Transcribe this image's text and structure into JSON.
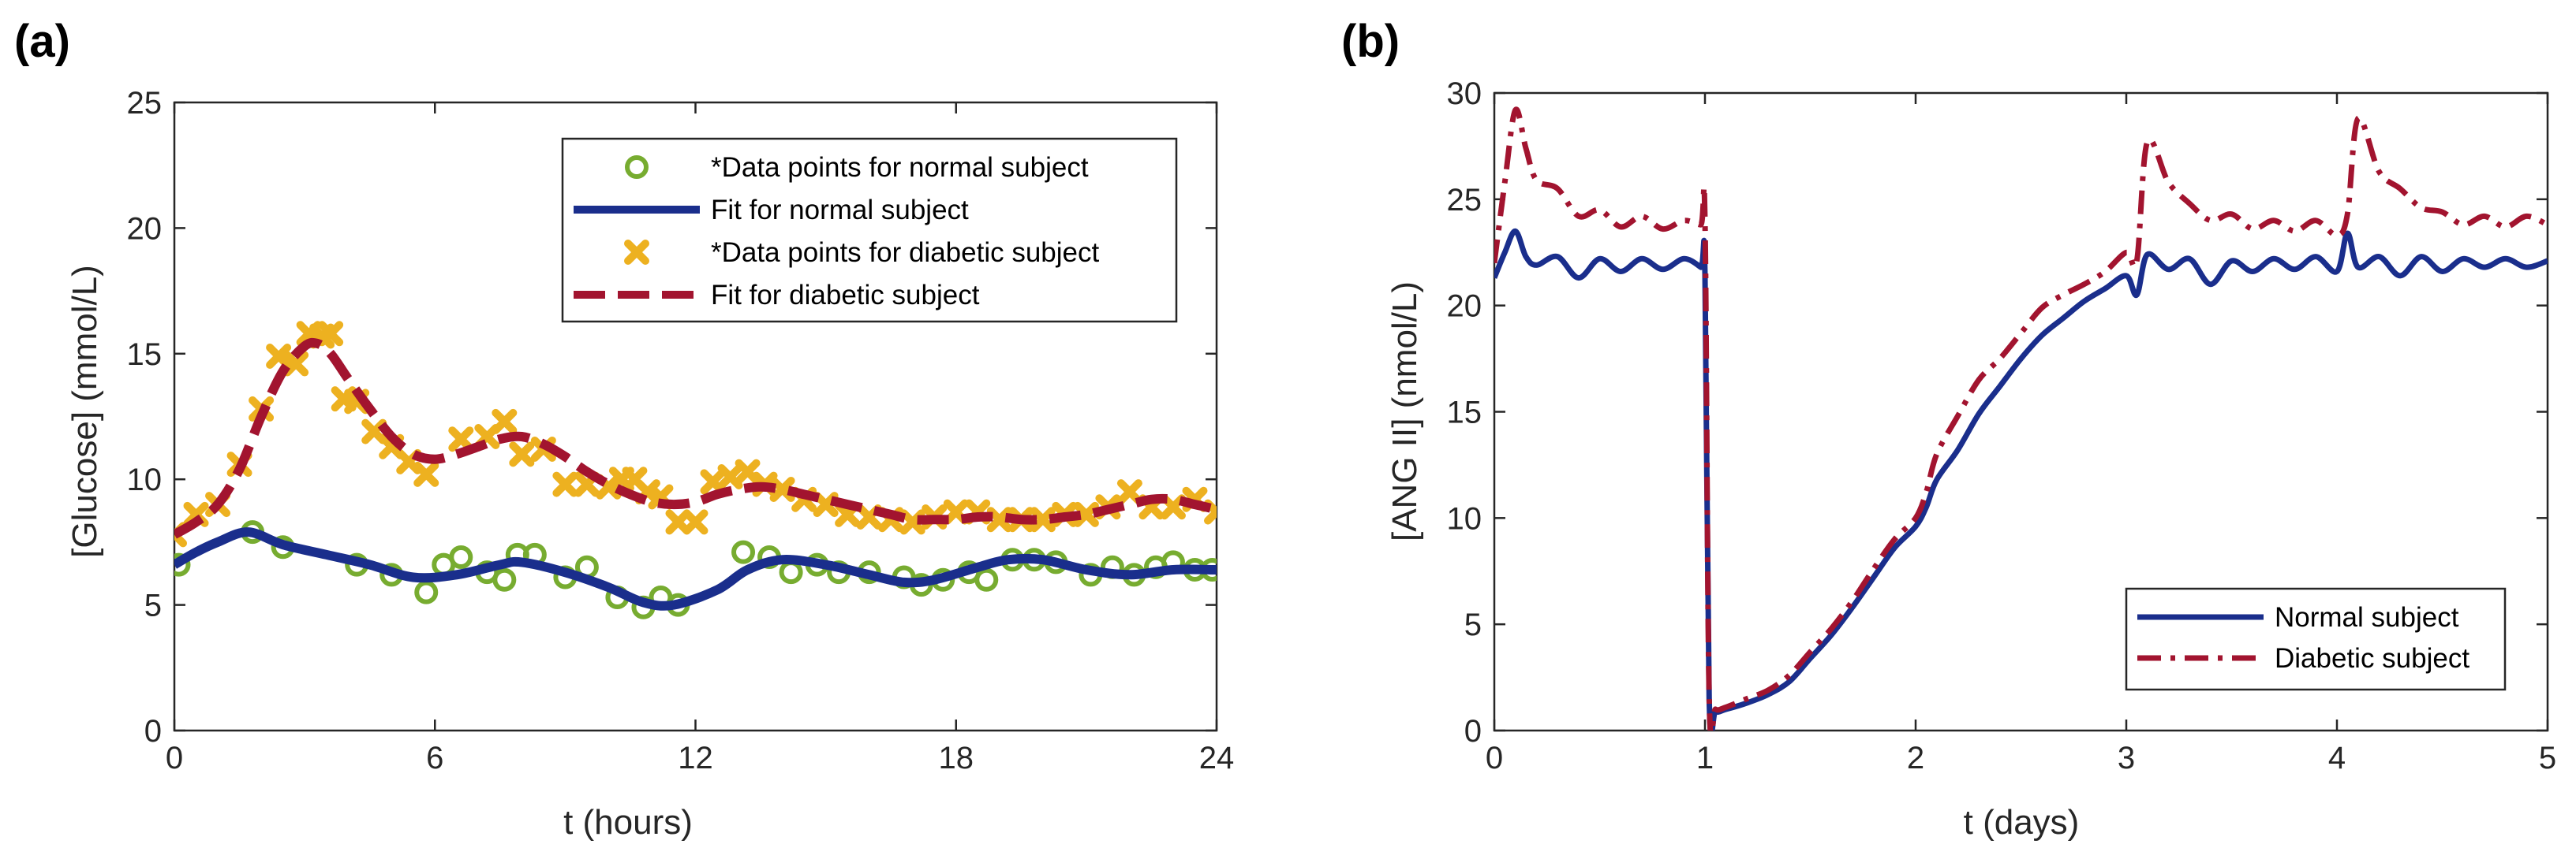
{
  "chart_data": [
    {
      "panel": "(a)",
      "type": "line",
      "xlabel": "t (hours)",
      "ylabel": "[Glucose] (mmol/L)",
      "xlim": [
        0,
        24
      ],
      "ylim": [
        0,
        25
      ],
      "xticks": [
        "0",
        "6",
        "12",
        "18",
        "24"
      ],
      "yticks": [
        "0",
        "5",
        "10",
        "15",
        "20",
        "25"
      ],
      "legend_position": "top-right",
      "series": [
        {
          "name": "*Data points for normal subject",
          "style": "circle-markers",
          "color": "#77AC30",
          "x": [
            0.1,
            1.8,
            2.5,
            4.2,
            5.0,
            5.8,
            6.2,
            6.6,
            7.2,
            7.6,
            7.9,
            8.3,
            9.0,
            9.5,
            10.2,
            10.8,
            11.2,
            11.6,
            13.1,
            13.7,
            14.2,
            14.8,
            15.3,
            16.0,
            16.8,
            17.2,
            17.7,
            18.3,
            18.7,
            19.3,
            19.8,
            20.3,
            21.1,
            21.6,
            22.1,
            22.6,
            23.0,
            23.5,
            23.9
          ],
          "y": [
            6.6,
            7.9,
            7.3,
            6.6,
            6.2,
            5.5,
            6.6,
            6.9,
            6.3,
            6.0,
            7.0,
            7.0,
            6.1,
            6.5,
            5.3,
            4.9,
            5.3,
            5.0,
            7.1,
            6.9,
            6.3,
            6.6,
            6.3,
            6.3,
            6.1,
            5.8,
            6.0,
            6.3,
            6.0,
            6.8,
            6.8,
            6.7,
            6.2,
            6.5,
            6.2,
            6.5,
            6.7,
            6.4,
            6.4
          ]
        },
        {
          "name": "Fit for normal subject",
          "style": "solid",
          "color": "#1A2E8C",
          "x": [
            0,
            0.5,
            1,
            1.7,
            2.5,
            3.5,
            4.5,
            5.5,
            6.5,
            7.5,
            8,
            9,
            10,
            10.8,
            11.5,
            12.5,
            13.2,
            14,
            15,
            16,
            16.8,
            17.5,
            18.5,
            19.2,
            20,
            21,
            22,
            23,
            24
          ],
          "y": [
            6.6,
            7.1,
            7.5,
            7.9,
            7.4,
            7.0,
            6.6,
            6.1,
            6.2,
            6.6,
            6.7,
            6.3,
            5.7,
            5.1,
            5.0,
            5.6,
            6.4,
            6.8,
            6.6,
            6.2,
            5.9,
            6.0,
            6.5,
            6.8,
            6.8,
            6.4,
            6.2,
            6.4,
            6.4
          ]
        },
        {
          "name": "*Data points for diabetic subject",
          "style": "x-markers",
          "color": "#EDB120",
          "x": [
            0,
            0.5,
            1.0,
            1.5,
            2.0,
            2.4,
            2.8,
            3.1,
            3.4,
            3.6,
            3.9,
            4.2,
            4.6,
            5.0,
            5.4,
            5.8,
            6.6,
            7.2,
            7.6,
            8.0,
            8.5,
            9.0,
            9.5,
            10.0,
            10.3,
            10.6,
            10.9,
            11.2,
            11.6,
            12.0,
            12.4,
            12.8,
            13.2,
            13.6,
            14.0,
            14.5,
            15.0,
            15.5,
            16.0,
            16.5,
            17.0,
            17.5,
            18.0,
            18.5,
            19.0,
            19.5,
            20.0,
            20.5,
            21.0,
            21.5,
            22.0,
            22.5,
            23.0,
            23.5,
            24.0
          ],
          "y": [
            7.8,
            8.6,
            9.0,
            10.6,
            12.8,
            14.9,
            14.6,
            15.8,
            15.7,
            15.8,
            13.2,
            13.1,
            11.9,
            11.3,
            10.7,
            10.2,
            11.6,
            11.7,
            12.3,
            11.0,
            11.2,
            9.8,
            9.8,
            9.7,
            10.0,
            10.0,
            9.5,
            9.3,
            8.3,
            8.3,
            9.9,
            10.1,
            10.3,
            9.8,
            9.6,
            9.2,
            9.0,
            8.6,
            8.5,
            8.4,
            8.3,
            8.5,
            8.7,
            8.7,
            8.4,
            8.4,
            8.4,
            8.6,
            8.6,
            8.9,
            9.5,
            8.9,
            8.9,
            9.2,
            8.7
          ]
        },
        {
          "name": "Fit for diabetic subject",
          "style": "dashed",
          "color": "#A2142F",
          "x": [
            0,
            0.5,
            1,
            1.5,
            2,
            2.5,
            3,
            3.3,
            3.6,
            4,
            4.5,
            5,
            5.5,
            6,
            6.5,
            7,
            7.5,
            8,
            8.5,
            9,
            9.5,
            10,
            10.5,
            11,
            11.5,
            12,
            12.5,
            13,
            13.5,
            14,
            14.5,
            15,
            15.5,
            16,
            16.5,
            17,
            17.5,
            18,
            18.5,
            19,
            19.5,
            20,
            20.5,
            21,
            21.5,
            22,
            22.5,
            23,
            23.5,
            24
          ],
          "y": [
            7.8,
            8.3,
            9.0,
            10.4,
            12.5,
            14.3,
            15.3,
            15.4,
            15.0,
            14.0,
            12.8,
            11.7,
            11.0,
            10.8,
            11.0,
            11.3,
            11.6,
            11.7,
            11.4,
            10.9,
            10.3,
            9.8,
            9.4,
            9.1,
            9.0,
            9.1,
            9.4,
            9.6,
            9.7,
            9.6,
            9.4,
            9.2,
            9.0,
            8.8,
            8.6,
            8.4,
            8.4,
            8.4,
            8.5,
            8.5,
            8.4,
            8.4,
            8.5,
            8.6,
            8.8,
            9.0,
            9.2,
            9.2,
            9.0,
            8.8
          ]
        }
      ]
    },
    {
      "panel": "(b)",
      "type": "line",
      "xlabel": "t (days)",
      "ylabel": "[ANG II] (nmol/L)",
      "xlim": [
        0,
        5
      ],
      "ylim": [
        0,
        30
      ],
      "xticks": [
        "0",
        "1",
        "2",
        "3",
        "4",
        "5"
      ],
      "yticks": [
        "0",
        "5",
        "10",
        "15",
        "20",
        "25",
        "30"
      ],
      "legend_position": "bottom-right",
      "series": [
        {
          "name": "Normal subject",
          "style": "solid",
          "color": "#1A2E8C",
          "x": [
            0,
            0.05,
            0.1,
            0.15,
            0.2,
            0.3,
            0.4,
            0.5,
            0.6,
            0.7,
            0.8,
            0.9,
            0.98,
            1.0,
            1.02,
            1.05,
            1.1,
            1.2,
            1.3,
            1.4,
            1.5,
            1.6,
            1.7,
            1.8,
            1.9,
            2.0,
            2.05,
            2.1,
            2.2,
            2.3,
            2.4,
            2.5,
            2.6,
            2.7,
            2.8,
            2.9,
            3.0,
            3.05,
            3.1,
            3.2,
            3.3,
            3.4,
            3.5,
            3.6,
            3.7,
            3.8,
            3.9,
            4.0,
            4.05,
            4.1,
            4.2,
            4.3,
            4.4,
            4.5,
            4.6,
            4.7,
            4.8,
            4.9,
            5.0
          ],
          "y": [
            21.3,
            22.5,
            23.5,
            22.3,
            21.9,
            22.3,
            21.3,
            22.2,
            21.6,
            22.2,
            21.7,
            22.2,
            21.8,
            21.5,
            1.5,
            0.9,
            1.0,
            1.3,
            1.7,
            2.3,
            3.4,
            4.5,
            5.8,
            7.2,
            8.6,
            9.6,
            10.5,
            11.8,
            13.2,
            14.9,
            16.2,
            17.5,
            18.6,
            19.4,
            20.2,
            20.8,
            21.4,
            20.5,
            22.4,
            21.7,
            22.2,
            21.0,
            22.1,
            21.6,
            22.2,
            21.7,
            22.3,
            21.6,
            23.4,
            21.8,
            22.3,
            21.4,
            22.3,
            21.6,
            22.2,
            21.8,
            22.2,
            21.8,
            22.1
          ]
        },
        {
          "name": "Diabetic subject",
          "style": "dash-dot",
          "color": "#A2142F",
          "x": [
            0,
            0.05,
            0.1,
            0.15,
            0.2,
            0.3,
            0.4,
            0.5,
            0.6,
            0.7,
            0.8,
            0.9,
            0.98,
            1.0,
            1.02,
            1.05,
            1.1,
            1.2,
            1.3,
            1.4,
            1.5,
            1.6,
            1.7,
            1.8,
            1.9,
            2.0,
            2.05,
            2.1,
            2.2,
            2.3,
            2.4,
            2.5,
            2.6,
            2.7,
            2.8,
            2.9,
            3.0,
            3.05,
            3.1,
            3.2,
            3.3,
            3.4,
            3.5,
            3.6,
            3.7,
            3.8,
            3.9,
            4.0,
            4.05,
            4.1,
            4.2,
            4.3,
            4.4,
            4.5,
            4.6,
            4.7,
            4.8,
            4.9,
            5.0
          ],
          "y": [
            22.0,
            25.8,
            29.2,
            27.4,
            25.9,
            25.5,
            24.2,
            24.5,
            23.7,
            24.2,
            23.6,
            24.0,
            23.8,
            24.0,
            1.6,
            1.0,
            1.1,
            1.5,
            1.9,
            2.6,
            3.7,
            4.8,
            6.1,
            7.6,
            9.0,
            10.0,
            11.2,
            13.0,
            14.8,
            16.5,
            17.5,
            18.7,
            19.9,
            20.5,
            21.0,
            21.6,
            22.5,
            22.1,
            27.7,
            25.8,
            24.8,
            24.0,
            24.3,
            23.6,
            24.0,
            23.5,
            24.0,
            23.3,
            24.3,
            28.8,
            26.3,
            25.5,
            24.6,
            24.4,
            23.8,
            24.2,
            23.7,
            24.2,
            23.8
          ]
        }
      ]
    }
  ]
}
